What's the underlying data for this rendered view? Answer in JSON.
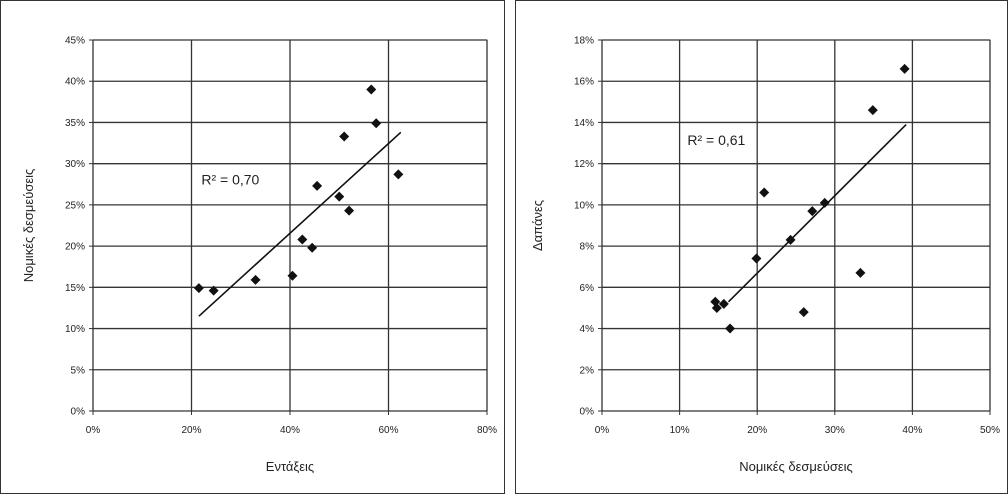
{
  "chart_data": [
    {
      "type": "scatter",
      "title": "",
      "xlabel": "Εντάξεις",
      "ylabel": "Νομικές δεσμεύσεις",
      "xlim": [
        0,
        80
      ],
      "ylim": [
        0,
        45
      ],
      "x_ticks": [
        "0%",
        "20%",
        "40%",
        "60%",
        "80%"
      ],
      "y_ticks": [
        "0%",
        "5%",
        "10%",
        "15%",
        "20%",
        "25%",
        "30%",
        "35%",
        "40%",
        "45%"
      ],
      "grid": true,
      "legend": "none",
      "marker_color": "#111111",
      "points": [
        {
          "x": 21.5,
          "y": 14.9
        },
        {
          "x": 24.5,
          "y": 14.6
        },
        {
          "x": 33.0,
          "y": 15.9
        },
        {
          "x": 40.5,
          "y": 16.4
        },
        {
          "x": 42.5,
          "y": 20.8
        },
        {
          "x": 44.5,
          "y": 19.8
        },
        {
          "x": 45.5,
          "y": 27.3
        },
        {
          "x": 50.0,
          "y": 26.0
        },
        {
          "x": 51.0,
          "y": 33.3
        },
        {
          "x": 52.0,
          "y": 24.3
        },
        {
          "x": 56.5,
          "y": 39.0
        },
        {
          "x": 57.5,
          "y": 34.9
        },
        {
          "x": 62.0,
          "y": 28.7
        }
      ],
      "trendline": {
        "x": [
          21.5,
          62.5
        ],
        "y": [
          11.5,
          33.8
        ]
      },
      "annotation": "R² = 0,70",
      "annotation_pos": {
        "x": 22,
        "y": 27.5
      }
    },
    {
      "type": "scatter",
      "title": "",
      "xlabel": "Νομικές δεσμεύσεις",
      "ylabel": "Δαπάνες",
      "xlim": [
        0,
        50
      ],
      "ylim": [
        0,
        18
      ],
      "x_ticks": [
        "0%",
        "10%",
        "20%",
        "30%",
        "40%",
        "50%"
      ],
      "y_ticks": [
        "0%",
        "2%",
        "4%",
        "6%",
        "8%",
        "10%",
        "12%",
        "14%",
        "16%",
        "18%"
      ],
      "grid": true,
      "legend": "none",
      "marker_color": "#111111",
      "points": [
        {
          "x": 14.6,
          "y": 5.3
        },
        {
          "x": 14.8,
          "y": 5.0
        },
        {
          "x": 15.7,
          "y": 5.2
        },
        {
          "x": 16.5,
          "y": 4.0
        },
        {
          "x": 19.9,
          "y": 7.4
        },
        {
          "x": 20.9,
          "y": 10.6
        },
        {
          "x": 24.3,
          "y": 8.3
        },
        {
          "x": 26.0,
          "y": 4.8
        },
        {
          "x": 27.1,
          "y": 9.7
        },
        {
          "x": 28.7,
          "y": 10.1
        },
        {
          "x": 33.3,
          "y": 6.7
        },
        {
          "x": 34.9,
          "y": 14.6
        },
        {
          "x": 39.0,
          "y": 16.6
        }
      ],
      "trendline": {
        "x": [
          16.3,
          39.2
        ],
        "y": [
          5.3,
          13.9
        ]
      },
      "annotation": "R² = 0,61",
      "annotation_pos": {
        "x": 11,
        "y": 12.9
      }
    }
  ]
}
